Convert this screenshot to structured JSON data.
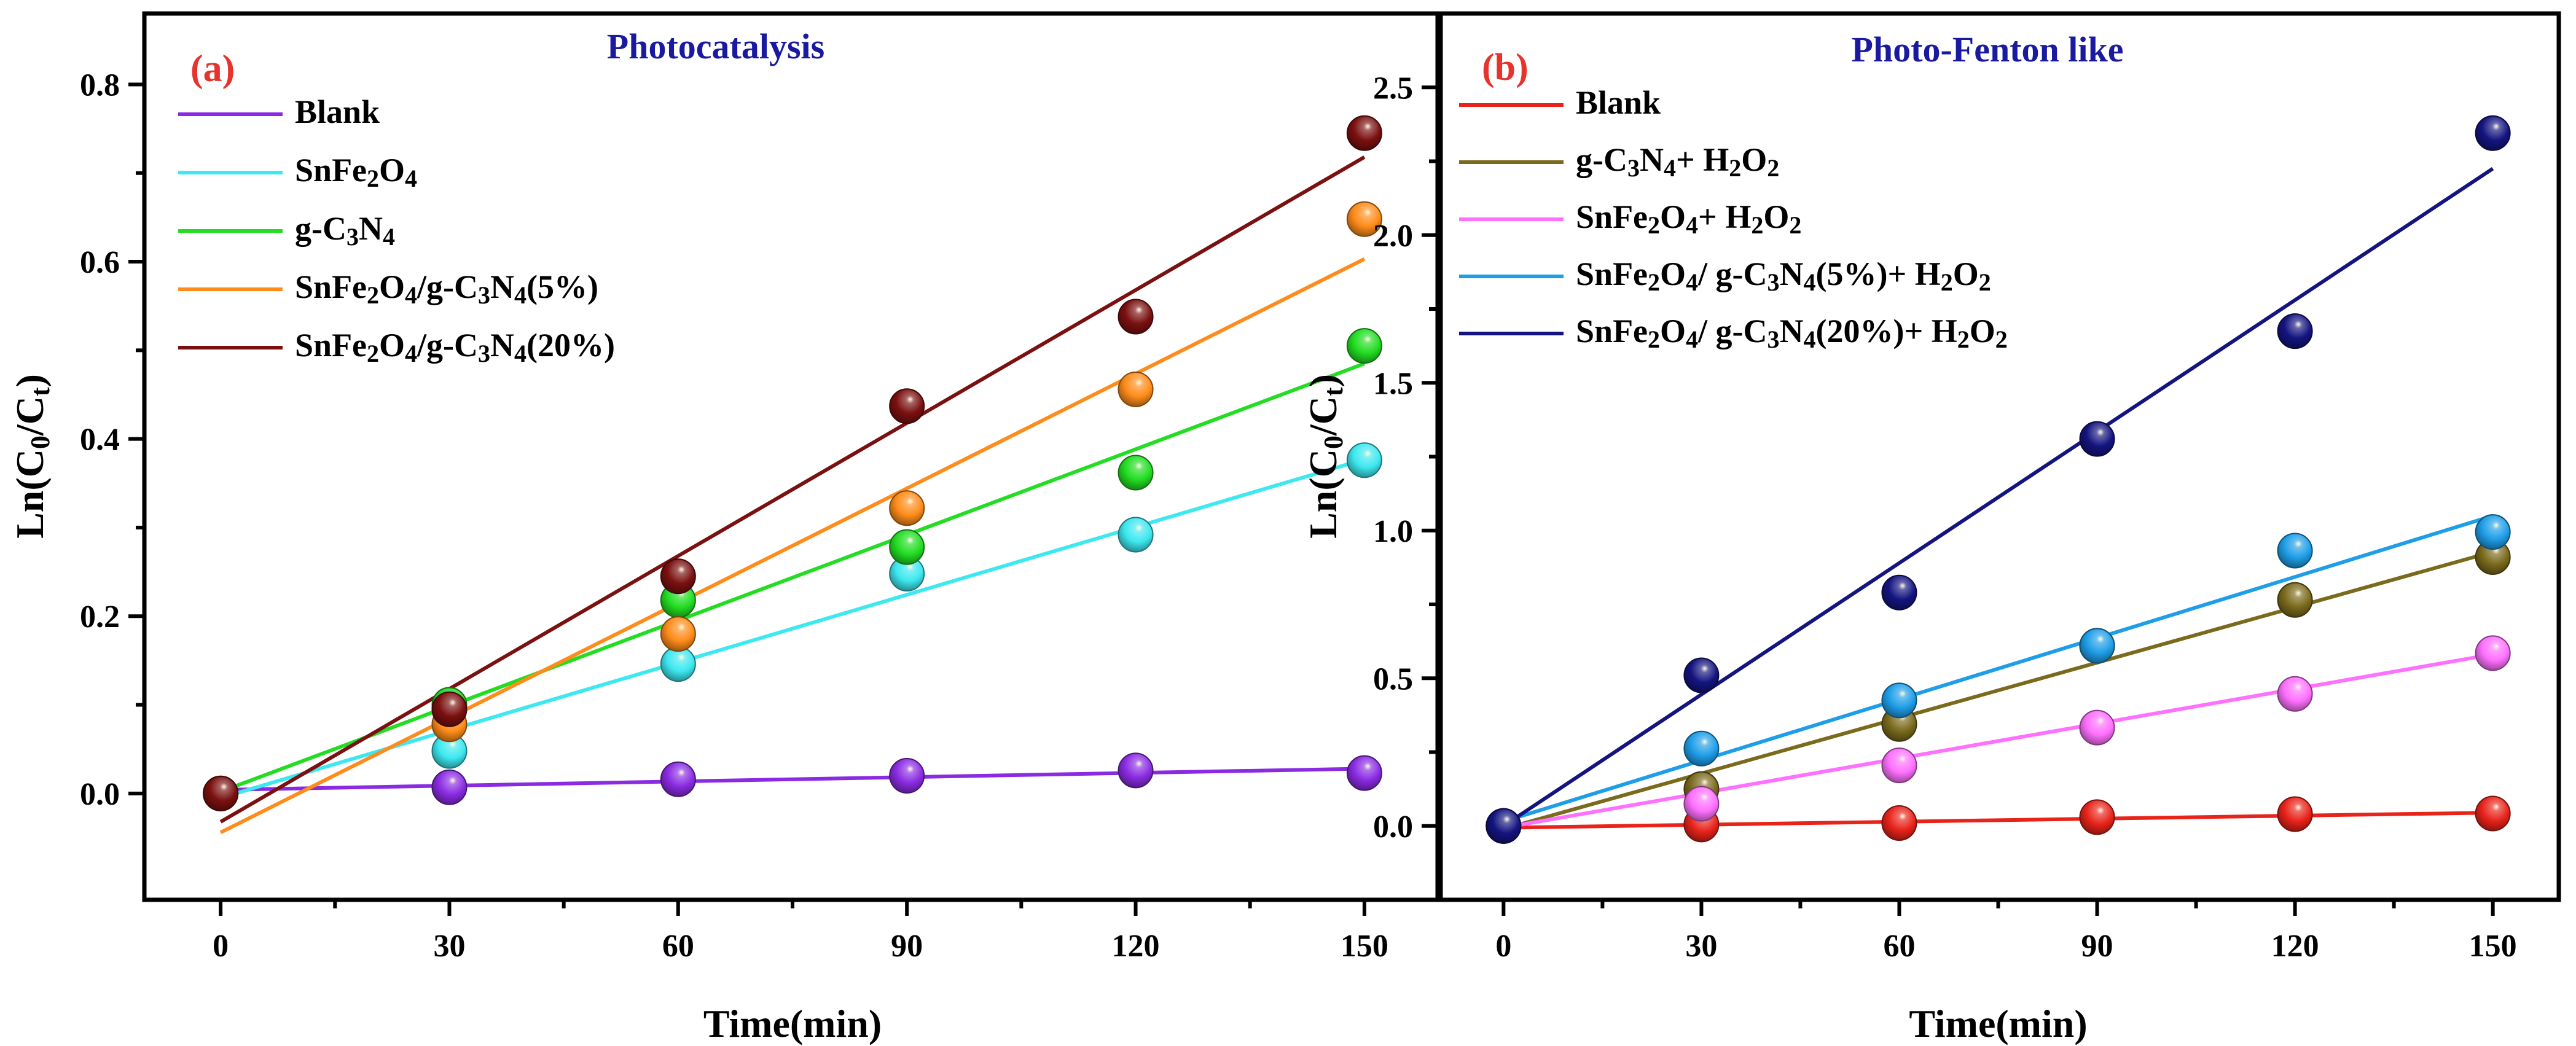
{
  "chart_data": [
    {
      "type": "scatter",
      "panel_label": "(a)",
      "title": "Photocatalysis",
      "xlabel": "Time(min)",
      "ylabel_parts": {
        "pre": "Ln(C",
        "sub1": "0",
        "mid": "/C",
        "sub2": "t",
        "post": ")"
      },
      "xlim": [
        -10,
        160
      ],
      "ylim": [
        -0.12,
        0.88
      ],
      "xticks": [
        0,
        30,
        60,
        90,
        120,
        150
      ],
      "yticks": [
        0.0,
        0.2,
        0.4,
        0.6,
        0.8
      ],
      "ytick_labels": [
        "0.0",
        "0.2",
        "0.4",
        "0.6",
        "0.8"
      ],
      "legend_position": "top-left",
      "x": [
        0,
        30,
        60,
        90,
        120,
        150
      ],
      "series": [
        {
          "name": "Blank",
          "label_runs": [
            [
              "Blank",
              ""
            ]
          ],
          "color": "#8a2be2",
          "values": [
            0.0,
            0.007,
            0.016,
            0.02,
            0.026,
            0.023
          ],
          "fit": [
            0.004,
            0.028
          ]
        },
        {
          "name": "SnFe2O4",
          "label_runs": [
            [
              "SnFe",
              ""
            ],
            [
              "2",
              "sub"
            ],
            [
              "O",
              ""
            ],
            [
              "4",
              "sub"
            ]
          ],
          "color": "#3de8f0",
          "values": [
            0.0,
            0.048,
            0.146,
            0.248,
            0.292,
            0.376
          ],
          "fit": [
            -0.005,
            0.377
          ]
        },
        {
          "name": "g-C3N4",
          "label_runs": [
            [
              "g-C",
              ""
            ],
            [
              "3",
              "sub"
            ],
            [
              "N",
              ""
            ],
            [
              "4",
              "sub"
            ]
          ],
          "color": "#22dd22",
          "values": [
            0.0,
            0.1,
            0.218,
            0.278,
            0.362,
            0.505
          ],
          "fit": [
            0.002,
            0.485
          ]
        },
        {
          "name": "SnFe2O4/g-C3N4(5%)",
          "label_runs": [
            [
              "SnFe",
              ""
            ],
            [
              "2",
              "sub"
            ],
            [
              "O",
              ""
            ],
            [
              "4",
              "sub"
            ],
            [
              "/g-C",
              ""
            ],
            [
              "3",
              "sub"
            ],
            [
              "N",
              ""
            ],
            [
              "4",
              "sub"
            ],
            [
              "(5%)",
              ""
            ]
          ],
          "color": "#ff8c1a",
          "values": [
            0.0,
            0.078,
            0.18,
            0.322,
            0.456,
            0.648
          ],
          "fit": [
            -0.044,
            0.603
          ]
        },
        {
          "name": "SnFe2O4/g-C3N4(20%)",
          "label_runs": [
            [
              " SnFe",
              ""
            ],
            [
              "2",
              "sub"
            ],
            [
              "O",
              ""
            ],
            [
              "4",
              "sub"
            ],
            [
              "/g-C",
              ""
            ],
            [
              "3",
              "sub"
            ],
            [
              "N",
              ""
            ],
            [
              "4",
              "sub"
            ],
            [
              "(20%)",
              ""
            ]
          ],
          "color": "#7b1010",
          "values": [
            0.0,
            0.095,
            0.245,
            0.437,
            0.538,
            0.745
          ],
          "fit": [
            -0.032,
            0.718
          ]
        }
      ]
    },
    {
      "type": "scatter",
      "panel_label": "(b)",
      "title": "Photo-Fenton like",
      "xlabel": "Time(min)",
      "ylabel_parts": {
        "pre": "Ln(C",
        "sub1": "0",
        "mid": "/C",
        "sub2": "t",
        "post": ")"
      },
      "xlim": [
        -10,
        160
      ],
      "ylim": [
        -0.25,
        2.75
      ],
      "xticks": [
        0,
        30,
        60,
        90,
        120,
        150
      ],
      "yticks": [
        0.0,
        0.5,
        1.0,
        1.5,
        2.0,
        2.5
      ],
      "ytick_labels": [
        "0.0",
        "0.5",
        "1.0",
        "1.5",
        "2.0",
        "2.5"
      ],
      "legend_position": "top-left",
      "x": [
        0,
        30,
        60,
        90,
        120,
        150
      ],
      "series": [
        {
          "name": "Blank",
          "label_runs": [
            [
              "Blank",
              ""
            ]
          ],
          "color": "#e8231a",
          "values": [
            0.0,
            0.005,
            0.01,
            0.03,
            0.04,
            0.042
          ],
          "fit": [
            -0.006,
            0.045
          ]
        },
        {
          "name": "g-C3N4+ H2O2",
          "label_runs": [
            [
              "g-C",
              ""
            ],
            [
              "3",
              "sub"
            ],
            [
              "N",
              ""
            ],
            [
              "4",
              "sub"
            ],
            [
              "+ H",
              ""
            ],
            [
              "2",
              "sub"
            ],
            [
              "O",
              ""
            ],
            [
              "2",
              "sub"
            ]
          ],
          "color": "#7a6a1c",
          "values": [
            0.0,
            0.125,
            0.345,
            0.61,
            0.765,
            0.91
          ],
          "fit": [
            -0.01,
            0.928
          ]
        },
        {
          "name": "SnFe2O4+ H2O2",
          "label_runs": [
            [
              "SnFe",
              ""
            ],
            [
              "2",
              "sub"
            ],
            [
              "O",
              ""
            ],
            [
              "4",
              "sub"
            ],
            [
              "+ H",
              ""
            ],
            [
              "2",
              "sub"
            ],
            [
              "O",
              ""
            ],
            [
              "2",
              "sub"
            ]
          ],
          "color": "#ff70ff",
          "values": [
            0.0,
            0.075,
            0.205,
            0.333,
            0.447,
            0.585
          ],
          "fit": [
            -0.006,
            0.581
          ]
        },
        {
          "name": "SnFe2O4/ g-C3N4(5%)+ H2O2",
          "label_runs": [
            [
              "SnFe",
              ""
            ],
            [
              "2",
              "sub"
            ],
            [
              "O",
              ""
            ],
            [
              "4",
              "sub"
            ],
            [
              "/ g-C",
              ""
            ],
            [
              "3",
              "sub"
            ],
            [
              "N",
              ""
            ],
            [
              "4",
              "sub"
            ],
            [
              "(5%)+ H",
              ""
            ],
            [
              "2",
              "sub"
            ],
            [
              "O",
              ""
            ],
            [
              "2",
              "sub"
            ]
          ],
          "color": "#1e9ee8",
          "values": [
            0.0,
            0.262,
            0.425,
            0.61,
            0.932,
            0.995
          ],
          "fit": [
            0.015,
            1.05
          ]
        },
        {
          "name": "SnFe2O4/ g-C3N4(20%)+ H2O2",
          "label_runs": [
            [
              "SnFe",
              ""
            ],
            [
              "2",
              "sub"
            ],
            [
              "O",
              ""
            ],
            [
              "4",
              "sub"
            ],
            [
              "/ g-C",
              ""
            ],
            [
              "3",
              "sub"
            ],
            [
              "N",
              ""
            ],
            [
              "4",
              "sub"
            ],
            [
              "(20%)+ H",
              ""
            ],
            [
              "2",
              "sub"
            ],
            [
              "O",
              ""
            ],
            [
              "2",
              "sub"
            ]
          ],
          "color": "#141480",
          "values": [
            0.0,
            0.51,
            0.79,
            1.31,
            1.675,
            2.345
          ],
          "fit": [
            0.0,
            2.225
          ]
        }
      ]
    }
  ]
}
